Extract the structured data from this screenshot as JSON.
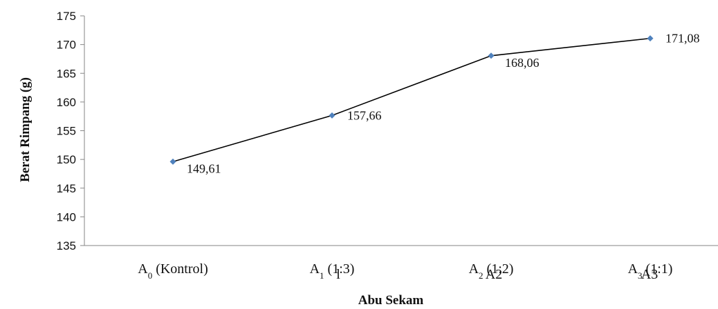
{
  "chart_data": {
    "type": "line",
    "title": "",
    "xlabel": "Abu Sekam",
    "ylabel": "Berat Rimpang (g)",
    "ylim": [
      135,
      175
    ],
    "y_ticks": [
      135,
      140,
      145,
      150,
      155,
      160,
      165,
      170,
      175
    ],
    "categories": [
      {
        "base": "A",
        "sub": "0",
        "rest": " (Kontrol)"
      },
      {
        "base": "A",
        "sub": "1",
        "rest": " (1:3)"
      },
      {
        "base": "A",
        "sub": "2",
        "rest": " (1:2)"
      },
      {
        "base": "A",
        "sub": "3",
        "rest": " (1:1)"
      }
    ],
    "stray_labels": [
      "l",
      "A2",
      "A3"
    ],
    "series": [
      {
        "values": [
          149.61,
          157.66,
          168.06,
          171.08
        ],
        "labels": [
          "149,61",
          "157,66",
          "168,06",
          "171,08"
        ],
        "color": "#4f81bd"
      }
    ],
    "line_color": "#000000",
    "grid": false,
    "legend": "none"
  }
}
